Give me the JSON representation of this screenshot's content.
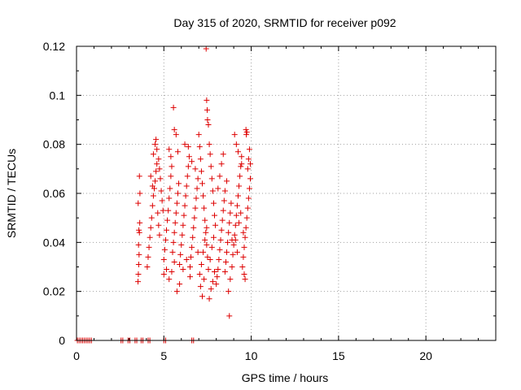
{
  "chart_data": {
    "type": "scatter",
    "title": "Day 315 of 2020, SRMTID for receiver p092",
    "xlabel": "GPS time / hours",
    "ylabel": "SRMTID / TECUs",
    "xlim": [
      0,
      24
    ],
    "ylim": [
      0,
      0.12
    ],
    "xticks": [
      0,
      5,
      10,
      15,
      20
    ],
    "xtick_labels": [
      "0",
      "5",
      "10",
      "15",
      "20"
    ],
    "yticks": [
      0,
      0.02,
      0.04,
      0.06,
      0.08,
      0.1,
      0.12
    ],
    "ytick_labels": [
      "0",
      "0.02",
      "0.04",
      "0.06",
      "0.08",
      "0.1",
      "0.12"
    ],
    "grid": true,
    "marker": "+",
    "series": [
      {
        "name": "SRMTID",
        "color": "#dd0000",
        "points": [
          [
            0.05,
            0
          ],
          [
            0.15,
            0
          ],
          [
            0.25,
            0
          ],
          [
            0.35,
            0
          ],
          [
            0.45,
            0
          ],
          [
            0.55,
            0
          ],
          [
            0.65,
            0
          ],
          [
            0.75,
            0
          ],
          [
            0.85,
            0
          ],
          [
            2.55,
            0
          ],
          [
            2.65,
            0
          ],
          [
            2.95,
            0
          ],
          [
            3.05,
            0
          ],
          [
            3.35,
            0
          ],
          [
            3.45,
            0
          ],
          [
            3.7,
            0
          ],
          [
            3.8,
            0
          ],
          [
            4.1,
            0
          ],
          [
            4.2,
            0
          ],
          [
            5.0,
            0
          ],
          [
            5.1,
            0
          ],
          [
            6.6,
            0
          ],
          [
            6.7,
            0
          ],
          [
            3.52,
            0.024
          ],
          [
            3.54,
            0.027
          ],
          [
            3.56,
            0.031
          ],
          [
            3.58,
            0.035
          ],
          [
            3.55,
            0.039
          ],
          [
            3.6,
            0.044
          ],
          [
            3.57,
            0.045
          ],
          [
            3.62,
            0.048
          ],
          [
            3.53,
            0.056
          ],
          [
            3.63,
            0.06
          ],
          [
            3.6,
            0.067
          ],
          [
            4.05,
            0.03
          ],
          [
            4.1,
            0.034
          ],
          [
            4.15,
            0.038
          ],
          [
            4.2,
            0.042
          ],
          [
            4.25,
            0.046
          ],
          [
            4.3,
            0.05
          ],
          [
            4.35,
            0.055
          ],
          [
            4.4,
            0.059
          ],
          [
            4.45,
            0.062
          ],
          [
            4.5,
            0.065
          ],
          [
            4.55,
            0.069
          ],
          [
            4.6,
            0.072
          ],
          [
            4.4,
            0.076
          ],
          [
            4.5,
            0.08
          ],
          [
            4.55,
            0.082
          ],
          [
            4.6,
            0.078
          ],
          [
            4.7,
            0.074
          ],
          [
            4.75,
            0.07
          ],
          [
            4.8,
            0.066
          ],
          [
            4.85,
            0.061
          ],
          [
            4.9,
            0.057
          ],
          [
            4.95,
            0.053
          ],
          [
            4.25,
            0.067
          ],
          [
            4.35,
            0.063
          ],
          [
            4.65,
            0.052
          ],
          [
            4.7,
            0.047
          ],
          [
            4.75,
            0.043
          ],
          [
            5.0,
            0.033
          ],
          [
            5.05,
            0.037
          ],
          [
            5.1,
            0.041
          ],
          [
            5.15,
            0.045
          ],
          [
            5.2,
            0.049
          ],
          [
            5.25,
            0.053
          ],
          [
            5.3,
            0.058
          ],
          [
            5.35,
            0.062
          ],
          [
            5.4,
            0.067
          ],
          [
            5.45,
            0.071
          ],
          [
            5.5,
            0.036
          ],
          [
            5.55,
            0.04
          ],
          [
            5.6,
            0.044
          ],
          [
            5.65,
            0.048
          ],
          [
            5.7,
            0.052
          ],
          [
            5.75,
            0.056
          ],
          [
            5.8,
            0.06
          ],
          [
            5.85,
            0.064
          ],
          [
            5.9,
            0.031
          ],
          [
            5.95,
            0.035
          ],
          [
            5.0,
            0.027
          ],
          [
            5.15,
            0.029
          ],
          [
            5.3,
            0.025
          ],
          [
            5.45,
            0.028
          ],
          [
            5.6,
            0.032
          ],
          [
            5.75,
            0.02
          ],
          [
            5.9,
            0.023
          ],
          [
            5.55,
            0.095
          ],
          [
            5.6,
            0.086
          ],
          [
            5.7,
            0.084
          ],
          [
            5.8,
            0.077
          ],
          [
            5.3,
            0.078
          ],
          [
            5.4,
            0.075
          ],
          [
            6.0,
            0.039
          ],
          [
            6.05,
            0.043
          ],
          [
            6.1,
            0.047
          ],
          [
            6.15,
            0.051
          ],
          [
            6.2,
            0.055
          ],
          [
            6.25,
            0.059
          ],
          [
            6.3,
            0.063
          ],
          [
            6.35,
            0.067
          ],
          [
            6.4,
            0.071
          ],
          [
            6.45,
            0.075
          ],
          [
            6.5,
            0.03
          ],
          [
            6.55,
            0.034
          ],
          [
            6.6,
            0.038
          ],
          [
            6.65,
            0.042
          ],
          [
            6.7,
            0.046
          ],
          [
            6.75,
            0.05
          ],
          [
            6.8,
            0.054
          ],
          [
            6.85,
            0.058
          ],
          [
            6.9,
            0.062
          ],
          [
            6.95,
            0.066
          ],
          [
            6.1,
            0.029
          ],
          [
            6.3,
            0.033
          ],
          [
            6.5,
            0.026
          ],
          [
            6.2,
            0.08
          ],
          [
            6.4,
            0.079
          ],
          [
            6.6,
            0.073
          ],
          [
            6.8,
            0.07
          ],
          [
            6.95,
            0.036
          ],
          [
            7.0,
            0.084
          ],
          [
            7.05,
            0.079
          ],
          [
            7.1,
            0.074
          ],
          [
            7.15,
            0.069
          ],
          [
            7.2,
            0.064
          ],
          [
            7.25,
            0.059
          ],
          [
            7.3,
            0.054
          ],
          [
            7.35,
            0.049
          ],
          [
            7.4,
            0.044
          ],
          [
            7.45,
            0.039
          ],
          [
            7.5,
            0.034
          ],
          [
            7.55,
            0.029
          ],
          [
            7.1,
            0.022
          ],
          [
            7.2,
            0.018
          ],
          [
            7.3,
            0.025
          ],
          [
            7.05,
            0.027
          ],
          [
            7.15,
            0.031
          ],
          [
            7.25,
            0.036
          ],
          [
            7.35,
            0.041
          ],
          [
            7.45,
            0.046
          ],
          [
            7.42,
            0.119
          ],
          [
            7.45,
            0.098
          ],
          [
            7.48,
            0.094
          ],
          [
            7.5,
            0.09
          ],
          [
            7.55,
            0.088
          ],
          [
            7.6,
            0.08
          ],
          [
            7.65,
            0.076
          ],
          [
            7.7,
            0.071
          ],
          [
            7.75,
            0.066
          ],
          [
            7.8,
            0.061
          ],
          [
            7.85,
            0.056
          ],
          [
            7.9,
            0.051
          ],
          [
            7.95,
            0.047
          ],
          [
            7.6,
            0.017
          ],
          [
            7.7,
            0.021
          ],
          [
            7.8,
            0.024
          ],
          [
            7.9,
            0.028
          ],
          [
            7.65,
            0.033
          ],
          [
            7.75,
            0.038
          ],
          [
            7.85,
            0.042
          ],
          [
            8.0,
            0.023
          ],
          [
            8.05,
            0.026
          ],
          [
            8.1,
            0.029
          ],
          [
            8.15,
            0.033
          ],
          [
            8.2,
            0.037
          ],
          [
            8.25,
            0.041
          ],
          [
            8.3,
            0.045
          ],
          [
            8.35,
            0.049
          ],
          [
            8.4,
            0.053
          ],
          [
            8.45,
            0.057
          ],
          [
            8.5,
            0.028
          ],
          [
            8.55,
            0.032
          ],
          [
            8.6,
            0.036
          ],
          [
            8.65,
            0.04
          ],
          [
            8.7,
            0.044
          ],
          [
            8.75,
            0.048
          ],
          [
            8.8,
            0.052
          ],
          [
            8.85,
            0.056
          ],
          [
            8.9,
            0.03
          ],
          [
            8.95,
            0.035
          ],
          [
            8.1,
            0.062
          ],
          [
            8.2,
            0.067
          ],
          [
            8.3,
            0.072
          ],
          [
            8.4,
            0.076
          ],
          [
            8.5,
            0.061
          ],
          [
            8.6,
            0.065
          ],
          [
            8.7,
            0.02
          ],
          [
            8.8,
            0.025
          ],
          [
            8.75,
            0.01
          ],
          [
            8.9,
            0.041
          ],
          [
            9.0,
            0.039
          ],
          [
            9.05,
            0.043
          ],
          [
            9.1,
            0.047
          ],
          [
            9.15,
            0.051
          ],
          [
            9.2,
            0.055
          ],
          [
            9.25,
            0.059
          ],
          [
            9.3,
            0.063
          ],
          [
            9.35,
            0.067
          ],
          [
            9.4,
            0.071
          ],
          [
            9.45,
            0.075
          ],
          [
            9.5,
            0.03
          ],
          [
            9.55,
            0.034
          ],
          [
            9.6,
            0.038
          ],
          [
            9.65,
            0.042
          ],
          [
            9.7,
            0.046
          ],
          [
            9.75,
            0.05
          ],
          [
            9.8,
            0.054
          ],
          [
            9.85,
            0.058
          ],
          [
            9.9,
            0.062
          ],
          [
            9.95,
            0.066
          ],
          [
            9.05,
            0.084
          ],
          [
            9.15,
            0.08
          ],
          [
            9.25,
            0.077
          ],
          [
            9.45,
            0.072
          ],
          [
            9.6,
            0.027
          ],
          [
            9.65,
            0.025
          ],
          [
            9.7,
            0.086
          ],
          [
            9.72,
            0.084
          ],
          [
            9.75,
            0.085
          ],
          [
            9.8,
            0.07
          ],
          [
            9.85,
            0.074
          ],
          [
            9.9,
            0.078
          ],
          [
            9.95,
            0.072
          ],
          [
            9.3,
            0.048
          ],
          [
            9.4,
            0.052
          ],
          [
            9.55,
            0.044
          ],
          [
            9.2,
            0.036
          ],
          [
            9.1,
            0.041
          ]
        ]
      }
    ]
  }
}
